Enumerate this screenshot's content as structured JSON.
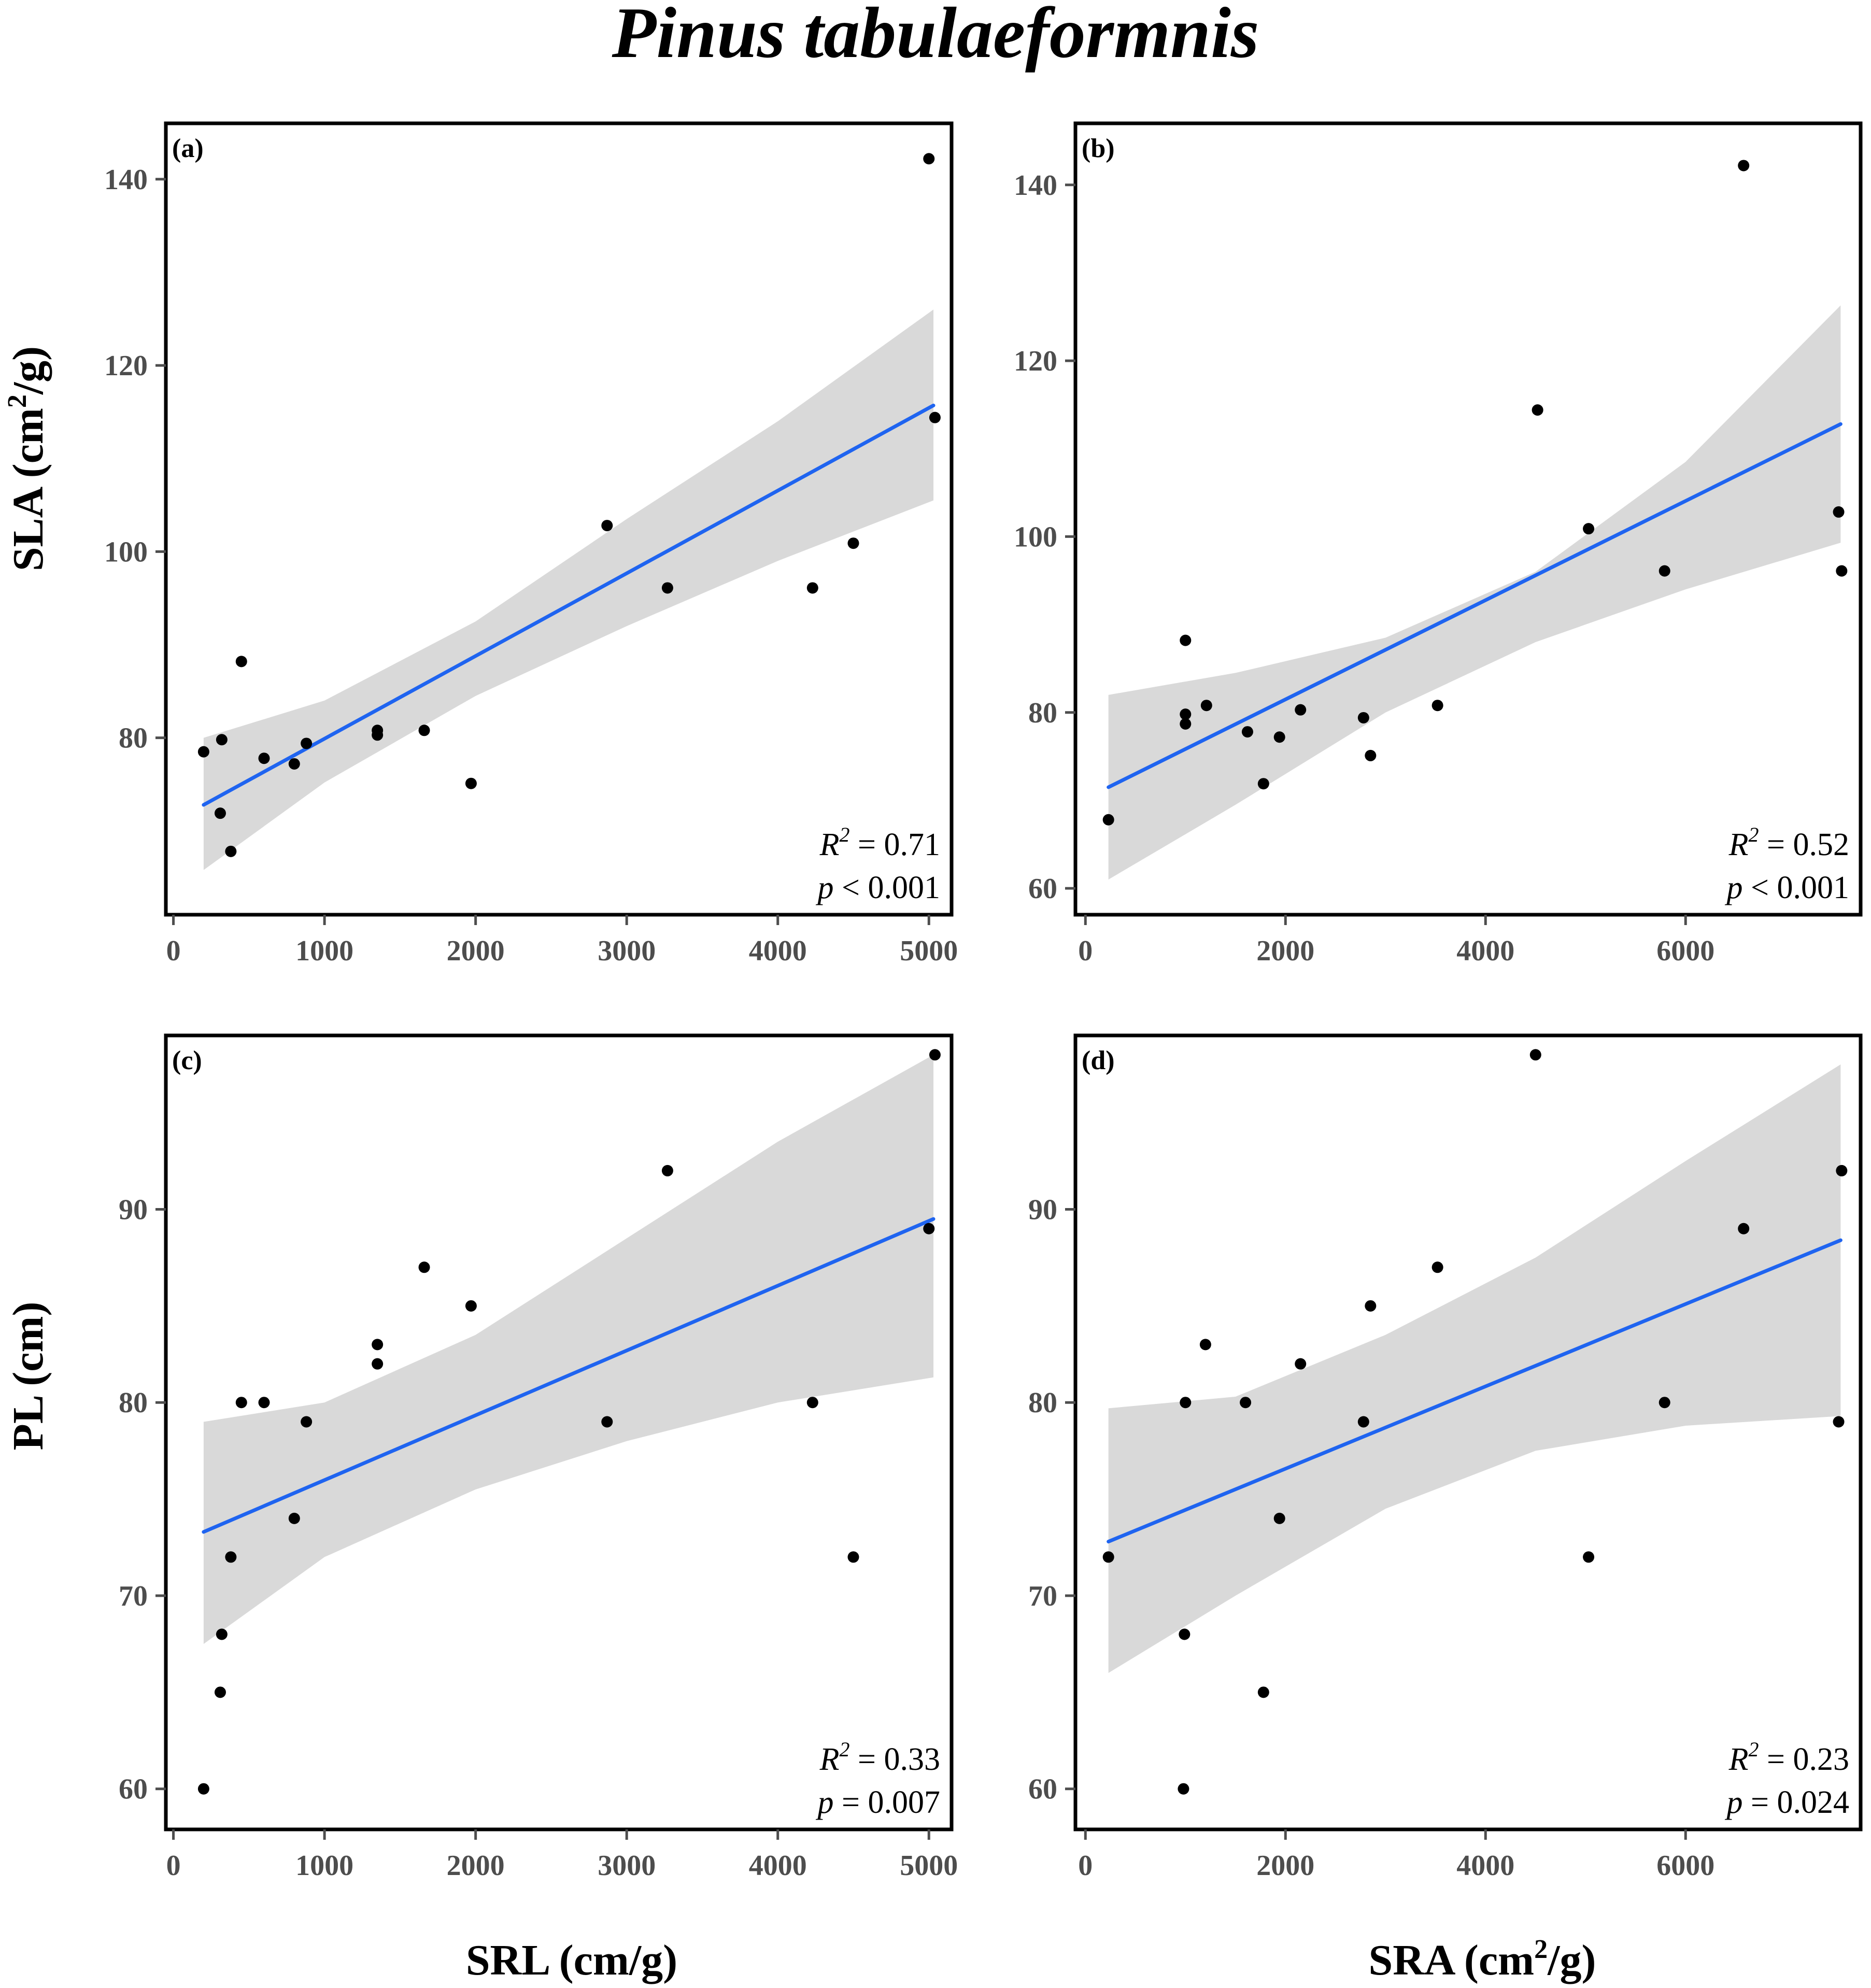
{
  "title": "Pinus tabulaeformnis",
  "colors": {
    "line": "#1f64f0",
    "band": "#d9d9d9",
    "point": "#000000",
    "tick_text": "#4d4d4d"
  },
  "row_titles": [
    {
      "text": "SLA (cm",
      "sup": "2",
      "tail": "/g)"
    },
    {
      "text": "PL (cm)",
      "sup": "",
      "tail": ""
    }
  ],
  "col_titles": [
    {
      "text": "SRL (cm/g)",
      "sup": "",
      "tail": ""
    },
    {
      "text": "SRA (cm",
      "sup": "2",
      "tail": "/g)"
    }
  ],
  "chart_data": [
    {
      "id": "a",
      "label": "(a)",
      "type": "scatter",
      "xlabel": "SRL (cm/g)",
      "ylabel": "SLA (cm2/g)",
      "xlim": [
        -50,
        5150
      ],
      "ylim": [
        61,
        146
      ],
      "xticks": [
        0,
        1000,
        2000,
        3000,
        4000,
        5000
      ],
      "yticks": [
        80,
        100,
        120,
        140
      ],
      "x": [
        200,
        320,
        310,
        380,
        450,
        600,
        800,
        880,
        1350,
        1350,
        1660,
        1970,
        2870,
        3270,
        4230,
        4500,
        5000,
        5040
      ],
      "y": [
        78.5,
        79.8,
        71.9,
        67.8,
        88.2,
        77.8,
        77.2,
        79.4,
        80.8,
        80.3,
        80.8,
        75.1,
        102.8,
        96.1,
        96.1,
        100.9,
        142.2,
        114.4
      ],
      "fit": {
        "x": [
          200,
          5030
        ],
        "y": [
          72.8,
          115.7
        ]
      },
      "band": {
        "x": [
          200,
          1000,
          2000,
          3000,
          4000,
          5030
        ],
        "lower": [
          65.8,
          75.2,
          84.5,
          92.0,
          99.0,
          105.5
        ],
        "upper": [
          80.0,
          84.0,
          92.5,
          103.5,
          114.0,
          126.0
        ]
      },
      "stats": {
        "r2_label": "R",
        "r2_sup": "2",
        "r2_value": " = 0.71",
        "p_label": "p",
        "p_value": " < 0.001"
      }
    },
    {
      "id": "b",
      "label": "(b)",
      "type": "scatter",
      "xlabel": "SRA (cm2/g)",
      "ylabel": "SLA (cm2/g)",
      "xlim": [
        -100,
        7750
      ],
      "ylim": [
        57,
        147
      ],
      "xticks": [
        0,
        2000,
        4000,
        6000
      ],
      "yticks": [
        60,
        80,
        100,
        120,
        140
      ],
      "x": [
        230,
        1000,
        1000,
        1000,
        1210,
        1620,
        1780,
        1940,
        2150,
        2780,
        2850,
        3520,
        4520,
        5030,
        5790,
        6580,
        7530,
        7560
      ],
      "y": [
        67.8,
        88.2,
        79.8,
        78.7,
        80.8,
        77.8,
        71.9,
        77.2,
        80.3,
        79.4,
        75.1,
        80.8,
        114.4,
        100.9,
        96.1,
        142.2,
        102.8,
        96.1
      ],
      "fit": {
        "x": [
          230,
          7550
        ],
        "y": [
          71.5,
          112.8
        ]
      },
      "band": {
        "x": [
          230,
          1500,
          3000,
          4500,
          6000,
          7550
        ],
        "lower": [
          61.0,
          69.5,
          80.0,
          88.0,
          94.0,
          99.3
        ],
        "upper": [
          82.0,
          84.5,
          88.5,
          96.0,
          108.5,
          126.3
        ]
      },
      "stats": {
        "r2_label": "R",
        "r2_sup": "2",
        "r2_value": " = 0.52",
        "p_label": "p",
        "p_value": " < 0.001"
      }
    },
    {
      "id": "c",
      "label": "(c)",
      "type": "scatter",
      "xlabel": "SRL (cm/g)",
      "ylabel": "PL (cm)",
      "xlim": [
        -50,
        5150
      ],
      "ylim": [
        57.9,
        99.0
      ],
      "xticks": [
        0,
        1000,
        2000,
        3000,
        4000,
        5000
      ],
      "yticks": [
        60,
        70,
        80,
        90
      ],
      "x": [
        200,
        310,
        320,
        380,
        450,
        600,
        800,
        880,
        1350,
        1350,
        1660,
        1970,
        2870,
        3270,
        4230,
        4500,
        5000,
        5040
      ],
      "y": [
        60,
        65,
        68,
        72,
        80,
        80,
        74,
        79,
        82,
        83,
        87,
        85,
        79,
        92,
        80,
        72,
        89,
        98
      ],
      "fit": {
        "x": [
          200,
          5030
        ],
        "y": [
          73.3,
          89.5
        ]
      },
      "band": {
        "x": [
          200,
          1000,
          2000,
          3000,
          4000,
          5030
        ],
        "lower": [
          67.5,
          72.0,
          75.5,
          78.0,
          80.0,
          81.3
        ],
        "upper": [
          79.0,
          80.0,
          83.5,
          88.5,
          93.5,
          98.0
        ]
      },
      "stats": {
        "r2_label": "R",
        "r2_sup": "2",
        "r2_value": " = 0.33",
        "p_label": "p",
        "p_value": " = 0.007"
      }
    },
    {
      "id": "d",
      "label": "(d)",
      "type": "scatter",
      "xlabel": "SRA (cm2/g)",
      "ylabel": "PL (cm)",
      "xlim": [
        -100,
        7750
      ],
      "ylim": [
        57.9,
        99.0
      ],
      "xticks": [
        0,
        2000,
        4000,
        6000
      ],
      "yticks": [
        60,
        70,
        80,
        90
      ],
      "x": [
        230,
        980,
        990,
        1000,
        1200,
        1600,
        1780,
        1940,
        2150,
        2780,
        2850,
        3520,
        4500,
        5030,
        5790,
        6580,
        7530,
        7560
      ],
      "y": [
        72,
        60,
        68,
        80,
        83,
        80,
        65,
        74,
        82,
        79,
        85,
        87,
        98,
        72,
        80,
        89,
        79,
        92
      ],
      "fit": {
        "x": [
          230,
          7550
        ],
        "y": [
          72.8,
          88.4
        ]
      },
      "band": {
        "x": [
          230,
          1500,
          3000,
          4500,
          6000,
          7550
        ],
        "lower": [
          66.0,
          70.0,
          74.5,
          77.5,
          78.8,
          79.3
        ],
        "upper": [
          79.7,
          80.3,
          83.5,
          87.5,
          92.5,
          97.5
        ]
      },
      "stats": {
        "r2_label": "R",
        "r2_sup": "2",
        "r2_value": " = 0.23",
        "p_label": "p",
        "p_value": " = 0.024"
      }
    }
  ]
}
